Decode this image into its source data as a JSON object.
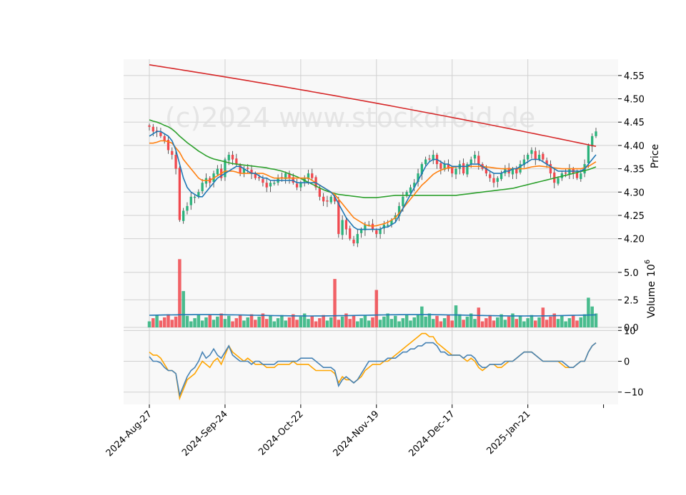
{
  "watermark": "(c)2024 www.stockdroid.de",
  "colors": {
    "panel_bg": "#f8f8f8",
    "grid": "#d0d0d0",
    "up": "#2ab27b",
    "down": "#f0484e",
    "ma_short": "#1f77b4",
    "ma_mid": "#ff7f0e",
    "ma_long": "#2ca02c",
    "ma_200": "#d62728",
    "osc_a": "#4682b4",
    "osc_b": "#ffa500",
    "vol_avg": "#1f77b4"
  },
  "chart_data": [
    {
      "type": "candlestick",
      "ylabel": "Price",
      "ylim": [
        4.175,
        4.585
      ],
      "yticks": [
        "4.20",
        "4.25",
        "4.30",
        "4.35",
        "4.40",
        "4.45",
        "4.50",
        "4.55"
      ],
      "x_tick_labels": [
        "2024-Aug-27",
        "2024-Sep-24",
        "2024-Oct-22",
        "2024-Nov-19",
        "2024-Dec-17",
        "2025-Jan-21"
      ],
      "x_tick_index": [
        0,
        20,
        40,
        60,
        80,
        100
      ],
      "close": [
        4.44,
        4.43,
        4.43,
        4.42,
        4.41,
        4.39,
        4.38,
        4.35,
        4.24,
        4.26,
        4.27,
        4.29,
        4.29,
        4.3,
        4.32,
        4.33,
        4.32,
        4.34,
        4.35,
        4.33,
        4.37,
        4.38,
        4.37,
        4.36,
        4.34,
        4.35,
        4.35,
        4.34,
        4.33,
        4.33,
        4.32,
        4.31,
        4.32,
        4.32,
        4.33,
        4.33,
        4.34,
        4.33,
        4.32,
        4.31,
        4.32,
        4.33,
        4.34,
        4.33,
        4.31,
        4.29,
        4.28,
        4.28,
        4.29,
        4.28,
        4.21,
        4.24,
        4.22,
        4.2,
        4.19,
        4.21,
        4.22,
        4.23,
        4.23,
        4.22,
        4.21,
        4.22,
        4.23,
        4.23,
        4.24,
        4.25,
        4.27,
        4.29,
        4.3,
        4.31,
        4.32,
        4.34,
        4.36,
        4.37,
        4.37,
        4.38,
        4.36,
        4.35,
        4.36,
        4.35,
        4.34,
        4.35,
        4.36,
        4.34,
        4.36,
        4.37,
        4.38,
        4.36,
        4.35,
        4.34,
        4.33,
        4.32,
        4.33,
        4.34,
        4.35,
        4.34,
        4.35,
        4.34,
        4.36,
        4.37,
        4.38,
        4.39,
        4.37,
        4.38,
        4.37,
        4.36,
        4.34,
        4.32,
        4.33,
        4.34,
        4.34,
        4.35,
        4.34,
        4.33,
        4.34,
        4.36,
        4.4,
        4.42,
        4.43
      ],
      "ma_short": [
        4.42,
        4.425,
        4.43,
        4.43,
        4.425,
        4.42,
        4.41,
        4.39,
        4.36,
        4.33,
        4.31,
        4.3,
        4.295,
        4.29,
        4.29,
        4.3,
        4.31,
        4.32,
        4.33,
        4.335,
        4.34,
        4.345,
        4.35,
        4.355,
        4.355,
        4.35,
        4.345,
        4.34,
        4.34,
        4.335,
        4.33,
        4.33,
        4.325,
        4.325,
        4.325,
        4.325,
        4.325,
        4.325,
        4.325,
        4.32,
        4.32,
        4.32,
        4.32,
        4.32,
        4.32,
        4.315,
        4.31,
        4.305,
        4.3,
        4.29,
        4.275,
        4.26,
        4.245,
        4.235,
        4.225,
        4.22,
        4.22,
        4.22,
        4.22,
        4.22,
        4.22,
        4.22,
        4.225,
        4.225,
        4.23,
        4.235,
        4.25,
        4.265,
        4.28,
        4.295,
        4.31,
        4.325,
        4.34,
        4.355,
        4.365,
        4.37,
        4.37,
        4.365,
        4.36,
        4.36,
        4.355,
        4.355,
        4.355,
        4.355,
        4.355,
        4.36,
        4.36,
        4.36,
        4.355,
        4.35,
        4.345,
        4.34,
        4.34,
        4.34,
        4.345,
        4.345,
        4.35,
        4.35,
        4.355,
        4.36,
        4.365,
        4.37,
        4.37,
        4.37,
        4.365,
        4.36,
        4.355,
        4.35,
        4.345,
        4.345,
        4.345,
        4.345,
        4.345,
        4.345,
        4.345,
        4.35,
        4.36,
        4.37,
        4.38
      ],
      "ma_mid": [
        4.405,
        4.405,
        4.407,
        4.41,
        4.41,
        4.408,
        4.405,
        4.395,
        4.385,
        4.37,
        4.36,
        4.35,
        4.34,
        4.33,
        4.325,
        4.325,
        4.325,
        4.33,
        4.335,
        4.34,
        4.345,
        4.345,
        4.345,
        4.343,
        4.34,
        4.34,
        4.34,
        4.34,
        4.34,
        4.34,
        4.34,
        4.337,
        4.333,
        4.33,
        4.33,
        4.33,
        4.33,
        4.33,
        4.33,
        4.33,
        4.33,
        4.33,
        4.33,
        4.325,
        4.32,
        4.315,
        4.31,
        4.305,
        4.3,
        4.295,
        4.285,
        4.275,
        4.265,
        4.255,
        4.245,
        4.24,
        4.235,
        4.23,
        4.228,
        4.227,
        4.228,
        4.23,
        4.232,
        4.235,
        4.24,
        4.245,
        4.255,
        4.265,
        4.275,
        4.285,
        4.295,
        4.305,
        4.315,
        4.322,
        4.33,
        4.338,
        4.343,
        4.347,
        4.35,
        4.352,
        4.353,
        4.354,
        4.355,
        4.355,
        4.355,
        4.355,
        4.355,
        4.355,
        4.355,
        4.354,
        4.353,
        4.352,
        4.351,
        4.35,
        4.35,
        4.35,
        4.35,
        4.35,
        4.35,
        4.35,
        4.352,
        4.354,
        4.355,
        4.356,
        4.355,
        4.354,
        4.353,
        4.352,
        4.351,
        4.35,
        4.35,
        4.35,
        4.35,
        4.35,
        4.35,
        4.352,
        4.355,
        4.36,
        4.365
      ],
      "ma_long": [
        4.455,
        4.452,
        4.45,
        4.447,
        4.443,
        4.44,
        4.435,
        4.428,
        4.42,
        4.413,
        4.406,
        4.4,
        4.394,
        4.388,
        4.383,
        4.378,
        4.374,
        4.371,
        4.369,
        4.367,
        4.365,
        4.363,
        4.361,
        4.36,
        4.359,
        4.358,
        4.357,
        4.356,
        4.355,
        4.354,
        4.353,
        4.352,
        4.35,
        4.349,
        4.347,
        4.345,
        4.342,
        4.339,
        4.336,
        4.333,
        4.329,
        4.325,
        4.321,
        4.317,
        4.313,
        4.309,
        4.305,
        4.302,
        4.299,
        4.297,
        4.295,
        4.294,
        4.293,
        4.292,
        4.291,
        4.29,
        4.289,
        4.288,
        4.288,
        4.288,
        4.288,
        4.289,
        4.29,
        4.291,
        4.292,
        4.293,
        4.293,
        4.293,
        4.293,
        4.293,
        4.293,
        4.293,
        4.293,
        4.293,
        4.293,
        4.293,
        4.293,
        4.293,
        4.293,
        4.293,
        4.293,
        4.293,
        4.294,
        4.295,
        4.296,
        4.297,
        4.298,
        4.299,
        4.3,
        4.301,
        4.302,
        4.303,
        4.304,
        4.305,
        4.306,
        4.307,
        4.308,
        4.31,
        4.312,
        4.314,
        4.316,
        4.318,
        4.32,
        4.322,
        4.324,
        4.326,
        4.328,
        4.33,
        4.332,
        4.334,
        4.336,
        4.338,
        4.34,
        4.342,
        4.344,
        4.346,
        4.348,
        4.351,
        4.354
      ],
      "ma_200_start": 4.573,
      "ma_200_end": 4.398
    },
    {
      "type": "bar",
      "ylabel": "Volume  10^6",
      "ylabel_main": "Volume",
      "ylabel_exp_base": "10",
      "ylabel_exp_power": "6",
      "ylim": [
        0,
        7
      ],
      "yticks": [
        "5.0",
        "2.5",
        "0.0"
      ],
      "volume_avg": 1.1,
      "volume_spikes": {
        "8": 6.2,
        "9": 3.3,
        "49": 4.4,
        "60": 3.4,
        "72": 1.9,
        "81": 2.0,
        "87": 1.8,
        "104": 1.8,
        "116": 2.7,
        "117": 1.9
      }
    },
    {
      "type": "line",
      "ylim": [
        -14,
        11
      ],
      "yticks": [
        "10",
        "0",
        "−10"
      ],
      "series_a": [
        1.5,
        0,
        0,
        -0.5,
        -2,
        -3,
        -3,
        -4,
        -11,
        -8,
        -5,
        -3,
        -2,
        0,
        3,
        1,
        2,
        4,
        2,
        1,
        3,
        5,
        2,
        1,
        0,
        0,
        0,
        -1,
        0,
        0,
        -1,
        -1,
        -1,
        -1,
        0,
        0,
        0,
        0,
        0,
        0,
        1,
        1,
        1,
        1,
        0,
        -1,
        -2,
        -2,
        -2,
        -3,
        -8,
        -6,
        -5,
        -6,
        -7,
        -6,
        -4,
        -2,
        0,
        0,
        0,
        0,
        0,
        1,
        1,
        1,
        2,
        3,
        3,
        4,
        4,
        5,
        5,
        6,
        6,
        6,
        5,
        3,
        3,
        2,
        2,
        2,
        2,
        1,
        2,
        2,
        1,
        -1,
        -2,
        -2,
        -1,
        -1,
        -1,
        -1,
        0,
        0,
        0,
        1,
        2,
        3,
        3,
        3,
        2,
        1,
        0,
        0,
        0,
        0,
        0,
        0,
        -1,
        -2,
        -2,
        -1,
        0,
        0,
        3,
        5,
        6
      ],
      "series_b": [
        3,
        2,
        2,
        1,
        -1,
        -3,
        -3,
        -4,
        -12,
        -9,
        -6,
        -5,
        -4,
        -2,
        0,
        -1,
        -2,
        0,
        1,
        -1,
        2,
        5,
        3,
        2,
        1,
        0,
        1,
        0,
        -1,
        -1,
        -1,
        -2,
        -2,
        -2,
        -1,
        -1,
        -1,
        -1,
        0,
        -1,
        -1,
        -1,
        -1,
        -2,
        -3,
        -3,
        -3,
        -3,
        -3,
        -4,
        -7,
        -5,
        -6,
        -6,
        -7,
        -6,
        -5,
        -3,
        -2,
        -1,
        -1,
        -1,
        0,
        0,
        1,
        2,
        3,
        4,
        5,
        6,
        7,
        8,
        9,
        9,
        8,
        8,
        6,
        5,
        4,
        3,
        2,
        2,
        2,
        1,
        0,
        1,
        0,
        -2,
        -3,
        -2,
        -1,
        -1,
        -2,
        -2,
        -1,
        0,
        0,
        1,
        2,
        3,
        3,
        3,
        2,
        1,
        0,
        0,
        0,
        0,
        0,
        -1,
        -2,
        -2,
        -2,
        -1,
        0,
        0,
        3,
        5,
        6
      ]
    }
  ]
}
